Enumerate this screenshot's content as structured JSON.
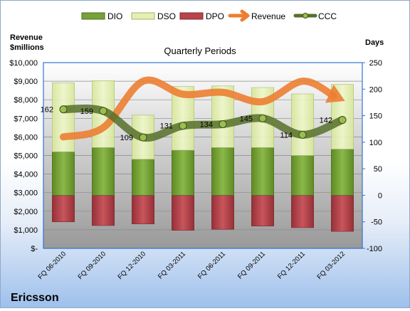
{
  "chart_data": {
    "type": "bar",
    "title": "Quarterly Periods",
    "company": "Ericsson",
    "left_axis_label": [
      "Revenue",
      "$millions"
    ],
    "right_axis_label": "Days",
    "left_ylim": [
      0,
      10000
    ],
    "left_ticks": [
      "$-",
      "$1,000",
      "$2,000",
      "$3,000",
      "$4,000",
      "$5,000",
      "$6,000",
      "$7,000",
      "$8,000",
      "$9,000",
      "$10,000"
    ],
    "right_ylim": [
      -100,
      250
    ],
    "right_ticks": [
      "-100",
      "-50",
      "0",
      "50",
      "100",
      "150",
      "200",
      "250"
    ],
    "categories": [
      "FQ 06-2010",
      "FQ 09-2010",
      "FQ 12-2010",
      "FQ 03-2011",
      "FQ 06-2011",
      "FQ 09-2011",
      "FQ 12-2011",
      "FQ 03-2012"
    ],
    "series": [
      {
        "name": "DIO",
        "axis": "days",
        "values": [
          82,
          90,
          68,
          85,
          90,
          90,
          75,
          87
        ]
      },
      {
        "name": "DSO",
        "axis": "days",
        "values": [
          130,
          126,
          83,
          120,
          116,
          113,
          116,
          122
        ]
      },
      {
        "name": "DPO",
        "axis": "days",
        "values": [
          50,
          57,
          54,
          66,
          64,
          58,
          61,
          68
        ]
      },
      {
        "name": "Revenue",
        "axis": "revenue",
        "values": [
          6000,
          6500,
          9000,
          8300,
          8400,
          7900,
          9000,
          8000
        ]
      },
      {
        "name": "CCC",
        "axis": "days",
        "values": [
          162,
          159,
          109,
          131,
          134,
          145,
          114,
          142
        ]
      }
    ],
    "ccc_labels": [
      "162",
      "159",
      "109",
      "131",
      "134",
      "145",
      "114",
      "142"
    ],
    "colors": {
      "DIO": "#76a237",
      "DSO": "#e4f0b3",
      "DPO": "#b9434a",
      "Revenue": "#ec7e32",
      "CCC": "#57702a",
      "plot_bg_top": "#ffffff",
      "plot_bg_bottom": "#999999",
      "border_blue": "#2f74d0"
    },
    "legend_position": "top",
    "grid": true
  }
}
